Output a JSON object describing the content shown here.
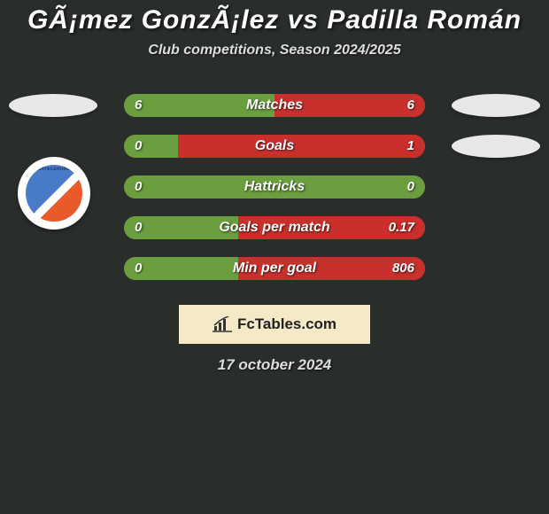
{
  "title": {
    "text": "GÃ¡mez GonzÃ¡lez vs Padilla Román",
    "fontsize": 30,
    "color": "#ffffff"
  },
  "subtitle": {
    "text": "Club competitions, Season 2024/2025",
    "fontsize": 16,
    "color": "#dddddd"
  },
  "background_color": "#2a2e2a",
  "bar_label_fontsize": 16,
  "bar_value_fontsize": 15,
  "left_color": "#6b9e3f",
  "right_color": "#c9302c",
  "track_color": "#c9302c",
  "rows": [
    {
      "label": "Matches",
      "left_value": "6",
      "right_value": "6",
      "left_pct": 50,
      "right_pct": 50,
      "show_left_badge": true,
      "show_right_badge": true
    },
    {
      "label": "Goals",
      "left_value": "0",
      "right_value": "1",
      "left_pct": 18,
      "right_pct": 82,
      "show_left_badge": false,
      "show_right_badge": true
    },
    {
      "label": "Hattricks",
      "left_value": "0",
      "right_value": "0",
      "left_pct": 100,
      "right_pct": 0,
      "show_left_badge": false,
      "show_right_badge": false
    },
    {
      "label": "Goals per match",
      "left_value": "0",
      "right_value": "0.17",
      "left_pct": 38,
      "right_pct": 62,
      "show_left_badge": false,
      "show_right_badge": false
    },
    {
      "label": "Min per goal",
      "left_value": "0",
      "right_value": "806",
      "left_pct": 38,
      "right_pct": 62,
      "show_left_badge": false,
      "show_right_badge": false
    }
  ],
  "crest": {
    "alt": "Correcaminos",
    "bg": "#ffffff"
  },
  "logo": {
    "text": "FcTables.com",
    "bg": "#f5e9c8",
    "fontsize": 17
  },
  "date": {
    "text": "17 october 2024",
    "fontsize": 17
  }
}
